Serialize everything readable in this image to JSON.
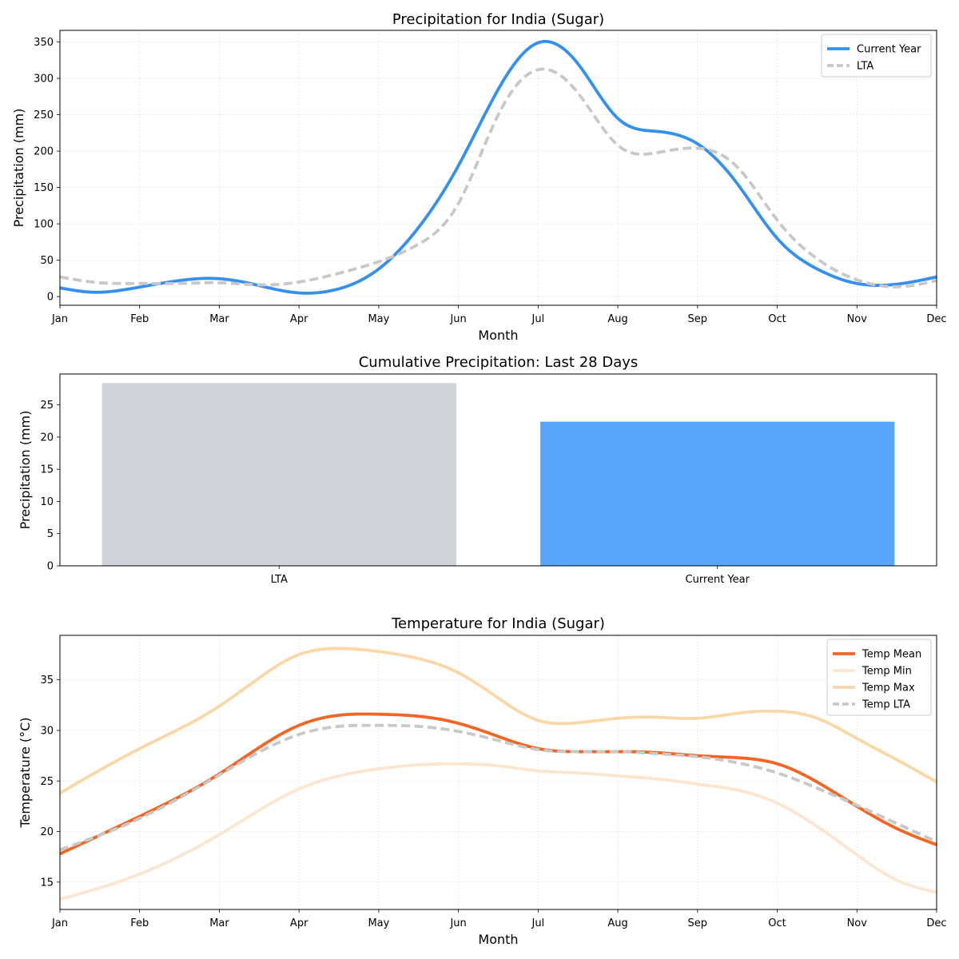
{
  "figure": {
    "background": "#ffffff"
  },
  "chart_data": [
    {
      "id": "precip",
      "type": "line",
      "title": "Precipitation for India (Sugar)",
      "xlabel": "Month",
      "ylabel": "Precipitation (mm)",
      "x_ticks": [
        "Jan",
        "Feb",
        "Mar",
        "Apr",
        "May",
        "Jun",
        "Jul",
        "Aug",
        "Sep",
        "Oct",
        "Nov",
        "Dec"
      ],
      "xlim": [
        0,
        11
      ],
      "ylim": [
        -12,
        366
      ],
      "y_ticks": [
        0,
        50,
        100,
        150,
        200,
        250,
        300,
        350
      ],
      "grid": true,
      "legend": "top-right",
      "series": [
        {
          "name": "Current Year",
          "color": "#3390f0",
          "dashed": false,
          "x": [
            0,
            0.4,
            1,
            1.5,
            1.9,
            2.3,
            3,
            3.4,
            4,
            4.5,
            5,
            5.5,
            6,
            6.5,
            7,
            7.5,
            8,
            8.5,
            9,
            9.5,
            10,
            10.5,
            11
          ],
          "y": [
            12,
            6,
            13,
            22,
            25,
            20,
            5,
            8,
            38,
            95,
            180,
            285,
            349,
            320,
            245,
            227,
            210,
            155,
            80,
            38,
            18,
            17,
            27
          ]
        },
        {
          "name": "LTA",
          "color": "#c8c8c8",
          "dashed": true,
          "x": [
            0,
            0.5,
            1,
            1.5,
            2,
            2.6,
            3,
            3.5,
            4,
            4.5,
            5,
            5.5,
            6,
            6.5,
            7,
            7.5,
            8,
            8.5,
            9,
            9.5,
            10,
            10.6,
            11
          ],
          "y": [
            27,
            19,
            18,
            18,
            19,
            16,
            20,
            32,
            48,
            72,
            128,
            250,
            312,
            280,
            208,
            198,
            204,
            178,
            105,
            52,
            23,
            14,
            22
          ]
        }
      ]
    },
    {
      "id": "cumulative",
      "type": "bar",
      "title": "Cumulative Precipitation: Last 28 Days",
      "xlabel": "",
      "ylabel": "Precipitation (mm)",
      "categories": [
        "LTA",
        "Current Year"
      ],
      "values": [
        28.4,
        22.4
      ],
      "colors": [
        "#d0d4d8",
        "#58a5fa"
      ],
      "ylim": [
        0,
        29.8
      ],
      "y_ticks": [
        0,
        5,
        10,
        15,
        20,
        25
      ],
      "grid": false
    },
    {
      "id": "temp",
      "type": "line",
      "title": "Temperature for India (Sugar)",
      "xlabel": "Month",
      "ylabel": "Temperature (°C)",
      "x_ticks": [
        "Jan",
        "Feb",
        "Mar",
        "Apr",
        "May",
        "Jun",
        "Jul",
        "Aug",
        "Sep",
        "Oct",
        "Nov",
        "Dec"
      ],
      "xlim": [
        0,
        11
      ],
      "ylim": [
        12.3,
        39.4
      ],
      "y_ticks": [
        15,
        20,
        25,
        30,
        35
      ],
      "grid": true,
      "legend": "top-right",
      "series": [
        {
          "name": "Temp Mean",
          "color": "#f26522",
          "dashed": false,
          "x": [
            0,
            1,
            2,
            3,
            3.5,
            4,
            4.5,
            5,
            5.5,
            6,
            6.5,
            7,
            7.5,
            8,
            8.5,
            9,
            9.5,
            10,
            10.5,
            11
          ],
          "y": [
            17.8,
            21.5,
            25.7,
            30.5,
            31.5,
            31.6,
            31.4,
            30.7,
            29.4,
            28.2,
            27.9,
            27.9,
            27.8,
            27.5,
            27.3,
            26.7,
            24.9,
            22.5,
            20.3,
            18.7
          ]
        },
        {
          "name": "Temp Min",
          "color": "#fde6d0",
          "dashed": false,
          "x": [
            0,
            1,
            2,
            3,
            3.5,
            4,
            4.5,
            5,
            5.5,
            6,
            6.5,
            7,
            7.5,
            8,
            8.5,
            9,
            9.5,
            10,
            10.5,
            11
          ],
          "y": [
            13.3,
            15.8,
            19.7,
            24.2,
            25.5,
            26.2,
            26.6,
            26.7,
            26.5,
            26.0,
            25.8,
            25.5,
            25.2,
            24.7,
            24.1,
            22.8,
            20.5,
            17.7,
            15.2,
            14.0
          ]
        },
        {
          "name": "Temp Max",
          "color": "#f9d8a6",
          "dashed": false,
          "x": [
            0,
            1,
            2,
            2.5,
            3,
            3.5,
            4,
            4.5,
            5,
            5.5,
            6,
            6.4,
            7,
            7.5,
            8,
            8.5,
            9,
            9.5,
            10,
            10.5,
            11
          ],
          "y": [
            23.8,
            28.2,
            32.4,
            35.2,
            37.5,
            38.1,
            37.8,
            37.1,
            35.7,
            33.2,
            31.0,
            30.7,
            31.2,
            31.3,
            31.2,
            31.7,
            31.9,
            31.2,
            29.2,
            27.1,
            24.9
          ]
        },
        {
          "name": "Temp LTA",
          "color": "#c8c8c8",
          "dashed": true,
          "x": [
            0,
            1,
            2,
            3,
            3.5,
            4,
            4.5,
            5,
            5.5,
            6,
            6.5,
            7,
            7.5,
            8,
            8.5,
            9,
            9.5,
            10,
            10.5,
            11
          ],
          "y": [
            18.2,
            21.3,
            25.6,
            29.6,
            30.4,
            30.5,
            30.4,
            29.9,
            29.0,
            28.1,
            27.9,
            27.9,
            27.7,
            27.4,
            26.8,
            25.8,
            24.3,
            22.6,
            20.8,
            19.0
          ]
        }
      ]
    }
  ]
}
